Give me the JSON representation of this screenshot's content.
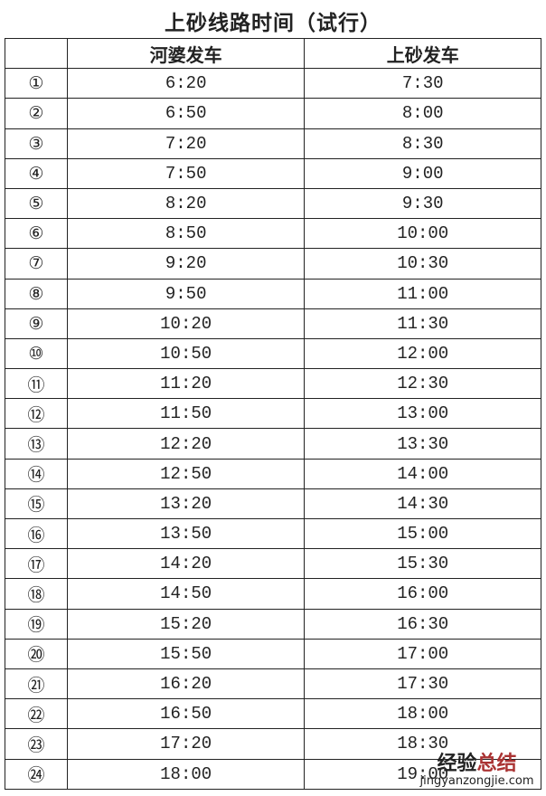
{
  "title": "上砂线路时间（试行）",
  "table": {
    "headers": [
      "",
      "河婆发车",
      "上砂发车"
    ],
    "rows": [
      [
        "①",
        "6:20",
        "7:30"
      ],
      [
        "②",
        "6:50",
        "8:00"
      ],
      [
        "③",
        "7:20",
        "8:30"
      ],
      [
        "④",
        "7:50",
        "9:00"
      ],
      [
        "⑤",
        "8:20",
        "9:30"
      ],
      [
        "⑥",
        "8:50",
        "10:00"
      ],
      [
        "⑦",
        "9:20",
        "10:30"
      ],
      [
        "⑧",
        "9:50",
        "11:00"
      ],
      [
        "⑨",
        "10:20",
        "11:30"
      ],
      [
        "⑩",
        "10:50",
        "12:00"
      ],
      [
        "⑪",
        "11:20",
        "12:30"
      ],
      [
        "⑫",
        "11:50",
        "13:00"
      ],
      [
        "⑬",
        "12:20",
        "13:30"
      ],
      [
        "⑭",
        "12:50",
        "14:00"
      ],
      [
        "⑮",
        "13:20",
        "14:30"
      ],
      [
        "⑯",
        "13:50",
        "15:00"
      ],
      [
        "⑰",
        "14:20",
        "15:30"
      ],
      [
        "⑱",
        "14:50",
        "16:00"
      ],
      [
        "⑲",
        "15:20",
        "16:30"
      ],
      [
        "⑳",
        "15:50",
        "17:00"
      ],
      [
        "㉑",
        "16:20",
        "17:30"
      ],
      [
        "㉒",
        "16:50",
        "18:00"
      ],
      [
        "㉓",
        "17:20",
        "18:30"
      ],
      [
        "㉔",
        "18:00",
        "19:00"
      ]
    ]
  },
  "watermark": {
    "cn_dark": "经验",
    "cn_red": "总结",
    "domain": "jingyanzongjie.com"
  }
}
